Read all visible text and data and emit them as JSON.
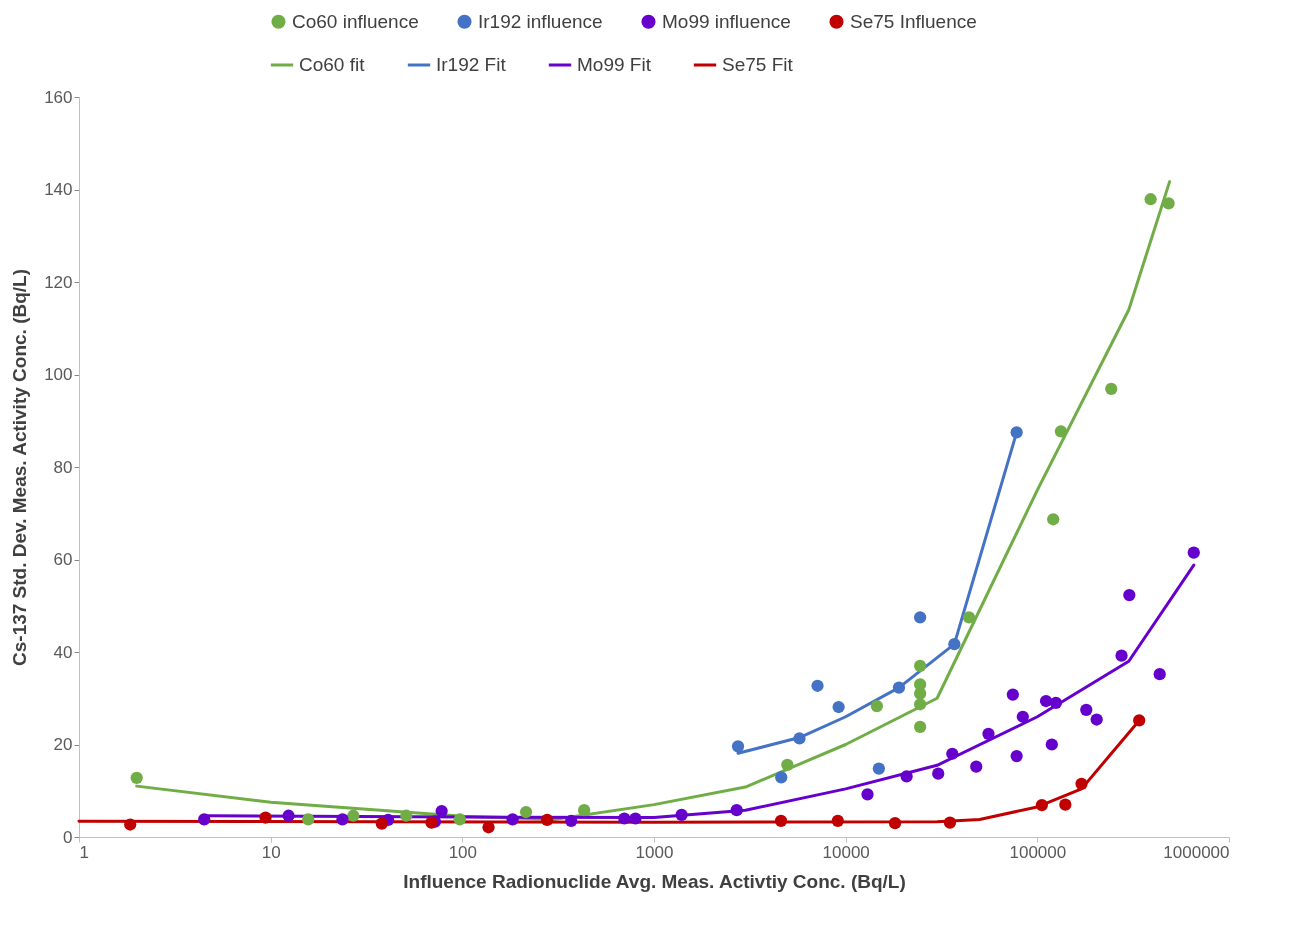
{
  "chart_data": {
    "type": "scatter",
    "xlabel": "Influence Radionuclide Avg. Meas. Activtiy Conc. (Bq/L)",
    "ylabel": "Cs-137 Std. Dev. Meas. Activity Conc. (Bq/L)",
    "log": "x",
    "xlim": [
      1,
      1000000
    ],
    "xticks": [
      1,
      10,
      100,
      1000,
      10000,
      100000,
      1000000
    ],
    "ylim": [
      0,
      160
    ],
    "yticks": [
      0,
      20,
      40,
      60,
      80,
      100,
      120,
      140,
      160
    ],
    "grid": false,
    "legend": "top",
    "marker": "circle",
    "line_style": "solid",
    "series": [
      {
        "name": "Co60 influence",
        "color": "#70ad47",
        "x": [
          2,
          15.7,
          27,
          51,
          97,
          215,
          432,
          4963,
          14550,
          24460,
          24460,
          24460,
          24460,
          24460,
          44000,
          121000,
          132800,
          243000,
          390000,
          484000
        ],
        "values": [
          12.8,
          3.8,
          4.6,
          4.6,
          3.8,
          5.4,
          5.8,
          15.6,
          28.3,
          37,
          33,
          31,
          28.7,
          23.8,
          47.5,
          68.7,
          87.7,
          96.9,
          137.9,
          137
        ]
      },
      {
        "name": "Ir192 influence",
        "color": "#4472c4",
        "x": [
          2744,
          4613,
          5741,
          7130,
          9190,
          14900,
          18970,
          24460,
          36900,
          78000
        ],
        "values": [
          19.6,
          12.9,
          21.3,
          32.7,
          28.1,
          14.8,
          32.3,
          47.5,
          41.7,
          87.5
        ]
      },
      {
        "name": "Mo99 influence",
        "color": "#6600cc",
        "x": [
          4.5,
          12.4,
          23.7,
          41,
          72,
          78,
          183,
          370,
          700,
          800,
          1393,
          2700,
          13000,
          20800,
          30400,
          36000,
          48000,
          55600,
          74500,
          78000,
          84000,
          111000,
          119000,
          125000,
          180000,
          204000,
          275000,
          302000,
          435000,
          655000
        ],
        "values": [
          3.8,
          4.6,
          3.8,
          3.7,
          3.3,
          5.6,
          3.8,
          3.5,
          4,
          4,
          4.8,
          5.8,
          9.2,
          13.1,
          13.7,
          18,
          15.2,
          22.3,
          30.8,
          17.5,
          26,
          29.4,
          20,
          29,
          27.5,
          25.4,
          39.2,
          52.3,
          35.2,
          61.5
        ]
      },
      {
        "name": "Se75 Influence",
        "color": "#c00000",
        "x": [
          1.85,
          9.4,
          38,
          69,
          137,
          277,
          4600,
          9100,
          18100,
          35000,
          105600,
          140000,
          170000,
          340000
        ],
        "values": [
          2.7,
          4.2,
          2.9,
          3.1,
          2.1,
          3.7,
          3.5,
          3.5,
          3.0,
          3.1,
          6.9,
          7.0,
          11.5,
          25.2
        ]
      },
      {
        "name": "Co60 fit",
        "type": "line",
        "marker": "none",
        "color": "#70ad47",
        "x": [
          2,
          10,
          100,
          300,
          1000,
          3000,
          10000,
          30000,
          100000,
          300000,
          490000
        ],
        "values": [
          11,
          7.5,
          4.5,
          3.8,
          7,
          10.8,
          20,
          30,
          75,
          114,
          141.7
        ]
      },
      {
        "name": "Ir192 Fit",
        "type": "line",
        "marker": "none",
        "color": "#4472c4",
        "x": [
          2744,
          5741,
          10000,
          18970,
          36900,
          78000
        ],
        "values": [
          18.1,
          21.5,
          26,
          32.3,
          41.7,
          87.5
        ]
      },
      {
        "name": "Mo99 Fit",
        "type": "line",
        "marker": "none",
        "color": "#6600cc",
        "x": [
          4.7,
          100,
          1000,
          3000,
          10000,
          30000,
          100000,
          300000,
          655000
        ],
        "values": [
          4.6,
          4.3,
          4.2,
          5.8,
          10.4,
          15.5,
          26,
          38,
          58.8
        ]
      },
      {
        "name": "Se75 Fit",
        "type": "line",
        "marker": "none",
        "color": "#c00000",
        "x": [
          1,
          1000,
          30000,
          50000,
          100000,
          170000,
          340000
        ],
        "values": [
          3.4,
          3.2,
          3.3,
          3.8,
          6.5,
          10.4,
          25.2
        ]
      }
    ]
  }
}
